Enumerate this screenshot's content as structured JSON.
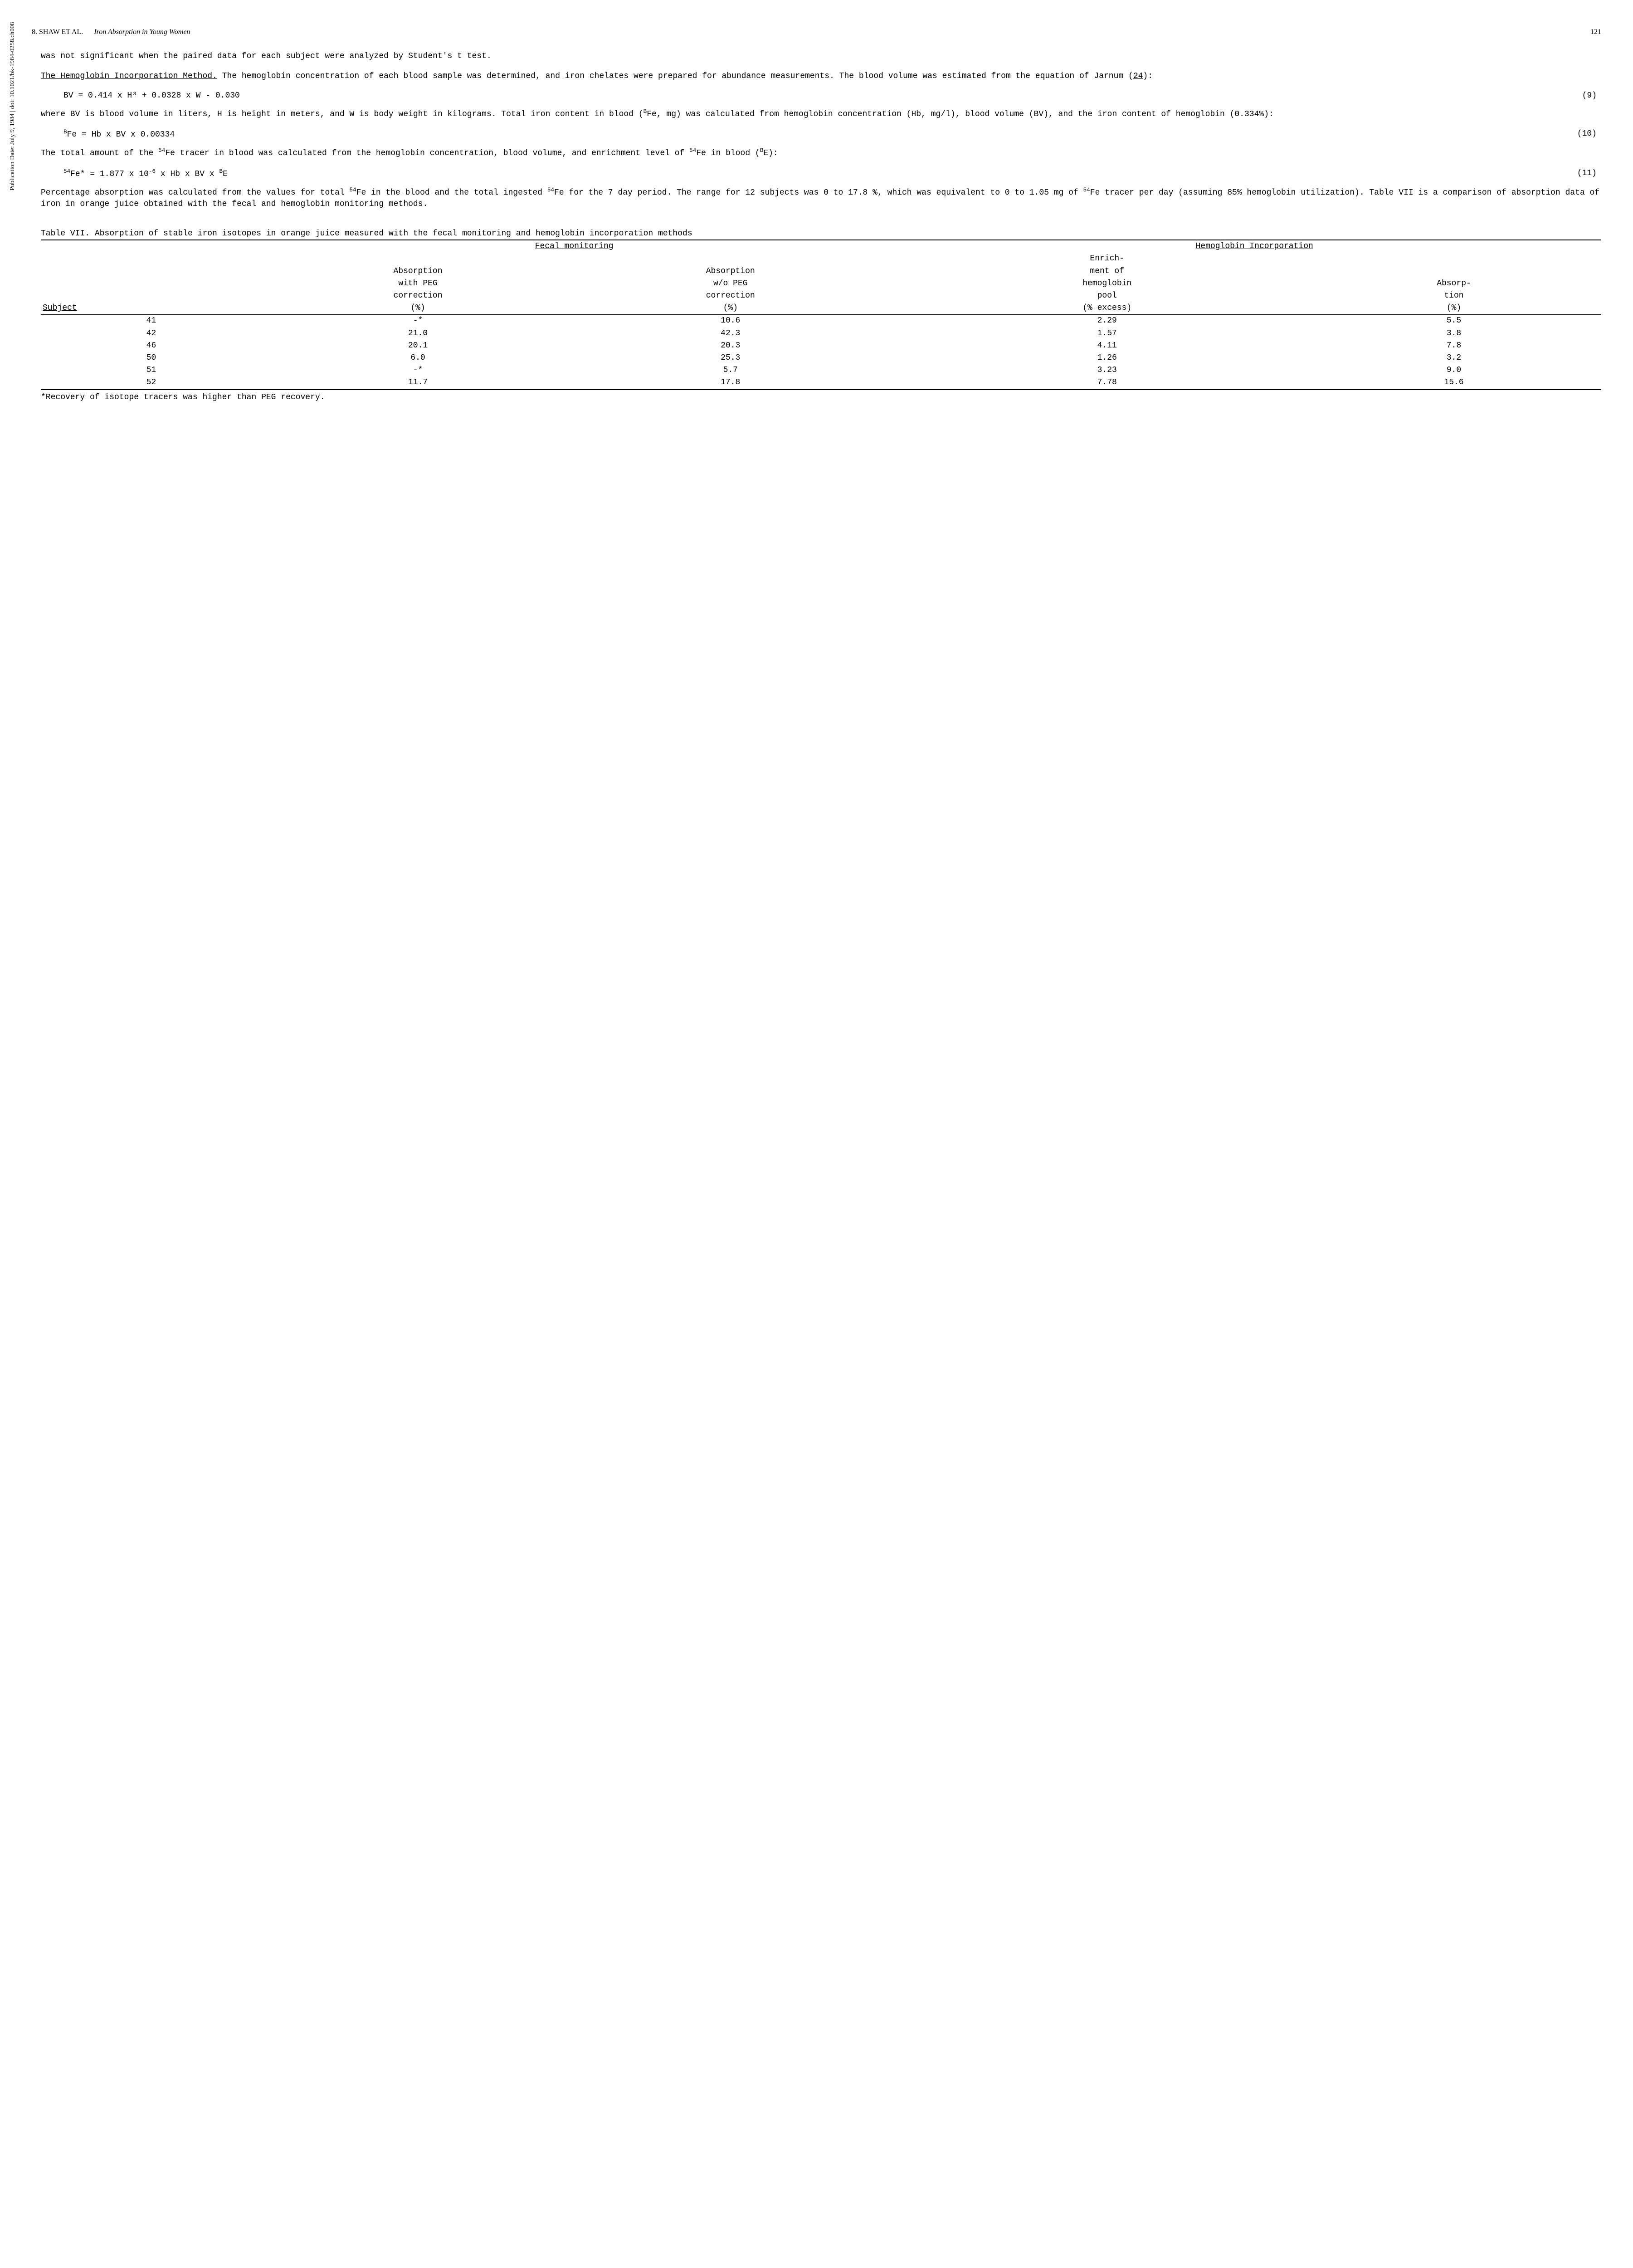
{
  "header": {
    "chapter": "8.",
    "author": "SHAW ET AL.",
    "title": "Iron Absorption in Young Women",
    "page": "121"
  },
  "sidebar": "Publication Date: July 9, 1984 | doi: 10.1021/bk-1984-0258.ch008",
  "para1": "was not significant when the paired data for each subject were analyzed by Student's t test.",
  "para2_head": "The Hemoglobin Incorporation Method.",
  "para2_body": "  The hemoglobin concentration of each blood sample was determined, and iron chelates were prepared for abundance measurements.  The blood volume was estimated from the equation of Jarnum (",
  "para2_ref": "24",
  "para2_end": "):",
  "eq9": "BV = 0.414 x H³ + 0.0328 x W - 0.030",
  "eq9_num": "(9)",
  "para3a": "where BV is blood volume in liters, H is height in meters, and W is body weight in kilograms.  Total iron content in blood (",
  "para3b": "Fe, mg) was calculated from hemoglobin concentration (Hb, mg/l), blood volume (BV), and the iron content of hemoglobin (0.334%):",
  "eq10_pre": "B",
  "eq10": "Fe = Hb x BV x 0.00334",
  "eq10_num": "(10)",
  "para4a": "The total amount of the ",
  "para4b": "Fe tracer in blood was calculated from the hemoglobin concentration, blood volume, and enrichment level of ",
  "para4c": "Fe in blood (",
  "para4d": "E):",
  "eq11_a": "54",
  "eq11_b": "Fe* = 1.877 x 10",
  "eq11_c": "-6",
  "eq11_d": " x Hb x BV x ",
  "eq11_e": "B",
  "eq11_f": "E",
  "eq11_num": "(11)",
  "para5a": "Percentage absorption was calculated from the values for total ",
  "para5b": "Fe in the blood and the total ingested ",
  "para5c": "Fe for the 7 day period.  The range for 12 subjects was 0 to 17.8 %, which was equivalent to 0 to 1.05 mg of ",
  "para5d": "Fe tracer per day (assuming 85% hemoglobin utilization).  Table VII is a comparison of absorption data of iron in orange juice obtained with the fecal and hemoglobin monitoring methods.",
  "table": {
    "title": "Table VII. Absorption of stable iron isotopes in orange juice measured with the fecal monitoring and hemoglobin incorporation methods",
    "group1": "Fecal monitoring",
    "group2": "Hemoglobin Incorporation",
    "col_subject": "Subject",
    "col_peg_l1": "Absorption",
    "col_peg_l2": "with PEG",
    "col_peg_l3": "correction",
    "col_peg_l4": "(%)",
    "col_nopeg_l1": "Absorption",
    "col_nopeg_l2": "w/o PEG",
    "col_nopeg_l3": "correction",
    "col_nopeg_l4": "(%)",
    "col_enrich_l1": "Enrich-",
    "col_enrich_l2": "ment of",
    "col_enrich_l3": "hemoglobin",
    "col_enrich_l4": "pool",
    "col_enrich_l5": "(% excess)",
    "col_abs_l1": "Absorp-",
    "col_abs_l2": "tion",
    "col_abs_l3": "(%)",
    "rows": [
      {
        "s": "41",
        "a": "-*",
        "b": "10.6",
        "c": "2.29",
        "d": "5.5"
      },
      {
        "s": "42",
        "a": "21.0",
        "b": "42.3",
        "c": "1.57",
        "d": "3.8"
      },
      {
        "s": "46",
        "a": "20.1",
        "b": "20.3",
        "c": "4.11",
        "d": "7.8"
      },
      {
        "s": "50",
        "a": "6.0",
        "b": "25.3",
        "c": "1.26",
        "d": "3.2"
      },
      {
        "s": "51",
        "a": "-*",
        "b": "5.7",
        "c": "3.23",
        "d": "9.0"
      },
      {
        "s": "52",
        "a": "11.7",
        "b": "17.8",
        "c": "7.78",
        "d": "15.6"
      }
    ],
    "footnote": "*Recovery of isotope tracers was higher than PEG recovery."
  }
}
